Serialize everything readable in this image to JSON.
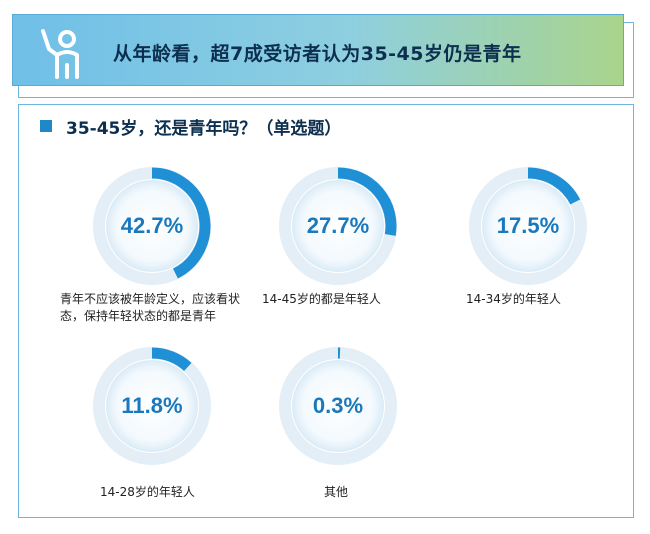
{
  "banner": {
    "title": "从年龄看，超7成受访者认为35-45岁仍是青年",
    "icon": "person-waving-icon"
  },
  "question": {
    "title": "35-45岁，还是青年吗？（单选题）"
  },
  "colors": {
    "accent": "#1e88c8",
    "arc": "#1f8fd6",
    "track": "#e3eef7",
    "disc": "#eaf4fb"
  },
  "chart_data": {
    "type": "pie",
    "title": "35-45岁，还是青年吗？（单选题）",
    "categories": [
      "青年不应该被年龄定义，应该看状态，保持年轻状态的都是青年",
      "14-45岁的都是年轻人",
      "14-34岁的年轻人",
      "14-28岁的年轻人",
      "其他"
    ],
    "values": [
      42.7,
      27.7,
      17.5,
      11.8,
      0.3
    ],
    "value_labels": [
      "42.7%",
      "27.7%",
      "17.5%",
      "11.8%",
      "0.3%"
    ],
    "unit": "%"
  }
}
